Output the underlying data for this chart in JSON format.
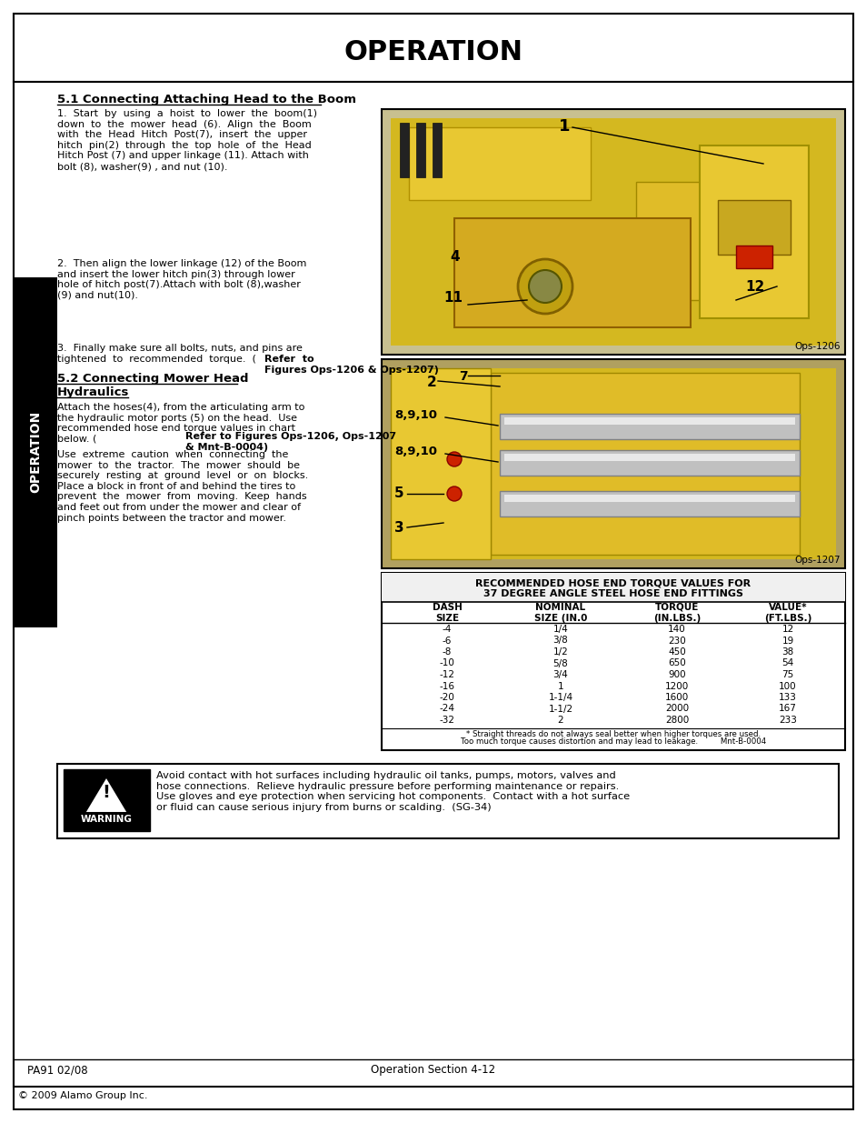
{
  "page_title": "OPERATION",
  "bg_color": "#ffffff",
  "section1_title": "5.1 Connecting Attaching Head to the Boom",
  "section1_para1": "1.  Start  by  using  a  hoist  to  lower  the  boom(1)\ndown  to  the  mower  head  (6).  Align  the  Boom\nwith  the  Head  Hitch  Post(7),  insert  the  upper\nhitch  pin(2)  through  the  top  hole  of  the  Head\nHitch Post (7) and upper linkage (11). Attach with\nbolt (8), washer(9) , and nut (10).",
  "section1_para2": "2.  Then align the lower linkage (12) of the Boom\nand insert the lower hitch pin(3) through lower\nhole of hitch post(7).Attach with bolt (8),washer\n(9) and nut(10).",
  "section1_para3a": "3.  Finally make sure all bolts, nuts, and pins are\ntightened  to  recommended  torque.  (",
  "section1_para3b": "Refer  to\nFigures Ops-1206 & Ops-1207)",
  "section2_title_line1": "5.2 Connecting Mower Head",
  "section2_title_line2": "Hydraulics",
  "section2_para1a": "Attach the hoses(4), from the articulating arm to\nthe hydraulic motor ports (5) on the head.  Use\nrecommended hose end torque values in chart\nbelow. (",
  "section2_para1b": "Refer to Figures Ops-1206, Ops-1207\n& Mnt-B-0004)",
  "section2_para2": "Use  extreme  caution  when  connecting  the\nmower  to  the  tractor.  The  mower  should  be\nsecurely  resting  at  ground  level  or  on  blocks.\nPlace a block in front of and behind the tires to\nprevent  the  mower  from  moving.  Keep  hands\nand feet out from under the mower and clear of\npinch points between the tractor and mower.",
  "table_title1": "RECOMMENDED HOSE END TORQUE VALUES FOR",
  "table_title2": "37 DEGREE ANGLE STEEL HOSE END FITTINGS",
  "table_headers": [
    "DASH\nSIZE",
    "NOMINAL\nSIZE (IN.0",
    "TORQUE\n(IN.LBS.)",
    "VALUE*\n(FT.LBS.)"
  ],
  "table_rows": [
    [
      "-4",
      "1/4",
      "140",
      "12"
    ],
    [
      "-6",
      "3/8",
      "230",
      "19"
    ],
    [
      "-8",
      "1/2",
      "450",
      "38"
    ],
    [
      "-10",
      "5/8",
      "650",
      "54"
    ],
    [
      "-12",
      "3/4",
      "900",
      "75"
    ],
    [
      "-16",
      "1",
      "1200",
      "100"
    ],
    [
      "-20",
      "1-1/4",
      "1600",
      "133"
    ],
    [
      "-24",
      "1-1/2",
      "2000",
      "167"
    ],
    [
      "-32",
      "2",
      "2800",
      "233"
    ]
  ],
  "table_footnote1": "* Straight threads do not always seal better when higher torques are used.",
  "table_footnote2": "Too much torque causes distortion and may lead to leakage.         Mnt-B-0004",
  "warning_text": "Avoid contact with hot surfaces including hydraulic oil tanks, pumps, motors, valves and\nhose connections.  Relieve hydraulic pressure before performing maintenance or repairs.\nUse gloves and eye protection when servicing hot components.  Contact with a hot surface\nor fluid can cause serious injury from burns or scalding.  (SG-34)",
  "footer_left": "PA91 02/08",
  "footer_center": "Operation Section 4-12",
  "footer_bottom": "© 2009 Alamo Group Inc.",
  "image1_label": "Ops-1206",
  "image2_label": "Ops-1207",
  "img1_colors": [
    "#e8c832",
    "#d4aa20",
    "#b89010",
    "#888888",
    "#555555",
    "#333333"
  ],
  "img2_colors": [
    "#e8c832",
    "#d4aa20",
    "#c0a000",
    "#888888",
    "#555555",
    "#333333"
  ]
}
